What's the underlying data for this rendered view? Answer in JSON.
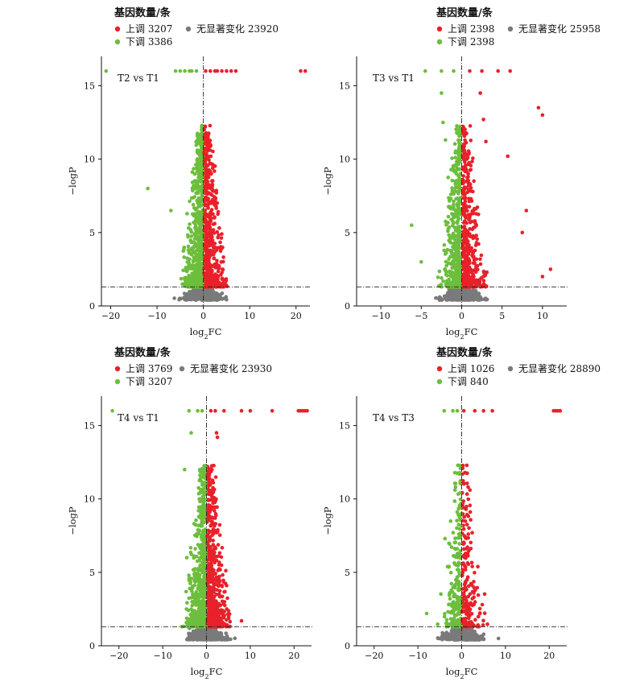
{
  "chart_data": [
    {
      "type": "scatter",
      "title": "T2 vs T1",
      "xlabel": "log2FC",
      "ylabel": "-logP",
      "xlim": [
        -22,
        23
      ],
      "ylim": [
        0,
        17
      ],
      "xticks": [
        -20,
        -10,
        0,
        10,
        20
      ],
      "yticks": [
        5,
        10,
        15
      ],
      "threshold": {
        "y": 1.3,
        "x": 0
      },
      "legend": {
        "title": "基因数量/条",
        "up": {
          "label": "上调",
          "count": "3207",
          "color": "#e8212a"
        },
        "down": {
          "label": "下调",
          "count": "3386",
          "color": "#6cbe3c"
        },
        "ns": {
          "label": "无显著变化",
          "count": "23920",
          "color": "#7a7a7a"
        }
      },
      "extremes": {
        "up": [
          [
            21,
            16
          ],
          [
            22,
            16
          ],
          [
            3,
            16
          ],
          [
            5,
            16
          ],
          [
            7,
            16
          ],
          [
            0.5,
            16
          ],
          [
            1.5,
            16
          ],
          [
            2.5,
            16
          ],
          [
            4,
            16
          ],
          [
            6,
            16
          ]
        ],
        "down": [
          [
            -21,
            16
          ],
          [
            -12,
            8
          ],
          [
            -7,
            6.5
          ],
          [
            -3,
            16
          ],
          [
            -5,
            16
          ],
          [
            -4,
            16
          ],
          [
            -6,
            16
          ],
          [
            -1.5,
            16
          ],
          [
            -2.5,
            16
          ]
        ]
      }
    },
    {
      "type": "scatter",
      "title": "T3 vs T1",
      "xlabel": "log2FC",
      "ylabel": "-logP",
      "xlim": [
        -13,
        13
      ],
      "ylim": [
        0,
        17
      ],
      "xticks": [
        -10,
        -5,
        0,
        5,
        10
      ],
      "yticks": [
        5,
        10,
        15
      ],
      "threshold": {
        "y": 1.3,
        "x": 0
      },
      "legend": {
        "title": "基因数量/条",
        "up": {
          "label": "上调",
          "count": "2398",
          "color": "#e8212a"
        },
        "down": {
          "label": "下调",
          "count": "2398",
          "color": "#6cbe3c"
        },
        "ns": {
          "label": "无显著变化",
          "count": "25958",
          "color": "#7a7a7a"
        }
      },
      "extremes": {
        "up": [
          [
            9.5,
            13.5
          ],
          [
            10,
            13
          ],
          [
            6,
            16
          ],
          [
            5.7,
            10.2
          ],
          [
            11,
            2.5
          ],
          [
            10,
            2
          ],
          [
            7.5,
            5
          ],
          [
            8,
            6.5
          ],
          [
            1,
            16
          ],
          [
            2.5,
            16
          ],
          [
            4.5,
            16
          ],
          [
            3,
            11.2
          ],
          [
            2.3,
            14.5
          ],
          [
            2.7,
            12.7
          ]
        ],
        "down": [
          [
            -6.2,
            5.5
          ],
          [
            -4.5,
            16
          ],
          [
            -2.5,
            16
          ],
          [
            -1,
            16
          ],
          [
            -2.5,
            14.5
          ],
          [
            -2.3,
            12.5
          ],
          [
            -2,
            11.3
          ],
          [
            -5,
            3
          ]
        ]
      }
    },
    {
      "type": "scatter",
      "title": "T4 vs T1",
      "xlabel": "log2FC",
      "ylabel": "-logP",
      "xlim": [
        -24,
        24
      ],
      "ylim": [
        0,
        17
      ],
      "xticks": [
        -20,
        -10,
        0,
        10,
        20
      ],
      "yticks": [
        5,
        10,
        15
      ],
      "threshold": {
        "y": 1.3,
        "x": 0
      },
      "legend": {
        "title": "基因数量/条",
        "up": {
          "label": "上调",
          "count": "3769",
          "color": "#e8212a"
        },
        "down": {
          "label": "下调",
          "count": "3207",
          "color": "#6cbe3c"
        },
        "ns": {
          "label": "无显著变化",
          "count": "23930",
          "color": "#7a7a7a"
        }
      },
      "extremes": {
        "up": [
          [
            21,
            16
          ],
          [
            21.5,
            16
          ],
          [
            22,
            16
          ],
          [
            22.5,
            16
          ],
          [
            23,
            16
          ],
          [
            4,
            16
          ],
          [
            8,
            16
          ],
          [
            10,
            16
          ],
          [
            15,
            16
          ],
          [
            1,
            16
          ],
          [
            2,
            16
          ],
          [
            2.3,
            14.5
          ],
          [
            2.5,
            14.2
          ],
          [
            8,
            1.7
          ]
        ],
        "down": [
          [
            -21.5,
            16
          ],
          [
            -4,
            16
          ],
          [
            -2,
            16
          ],
          [
            -1,
            16
          ],
          [
            -3.5,
            14.5
          ],
          [
            -5,
            12
          ],
          [
            -4.5,
            6
          ]
        ]
      }
    },
    {
      "type": "scatter",
      "title": "T4 vs T3",
      "xlabel": "log2FC",
      "ylabel": "-logP",
      "xlim": [
        -24,
        24
      ],
      "ylim": [
        0,
        17
      ],
      "xticks": [
        -20,
        -10,
        0,
        10,
        20
      ],
      "yticks": [
        5,
        10,
        15
      ],
      "threshold": {
        "y": 1.3,
        "x": 0
      },
      "legend": {
        "title": "基因数量/条",
        "up": {
          "label": "上调",
          "count": "1026",
          "color": "#e8212a"
        },
        "down": {
          "label": "下调",
          "count": "840",
          "color": "#6cbe3c"
        },
        "ns": {
          "label": "无显著变化",
          "count": "28890",
          "color": "#7a7a7a"
        }
      },
      "extremes": {
        "up": [
          [
            21,
            16
          ],
          [
            21.5,
            16
          ],
          [
            22,
            16
          ],
          [
            22.5,
            16
          ],
          [
            3,
            16
          ],
          [
            5,
            16
          ],
          [
            7,
            16
          ],
          [
            0.5,
            16
          ],
          [
            1,
            9.3
          ]
        ],
        "down": [
          [
            -4,
            16
          ],
          [
            -2,
            16
          ],
          [
            -1,
            16
          ],
          [
            -3.8,
            7.3
          ],
          [
            -8,
            2.2
          ]
        ]
      }
    }
  ]
}
